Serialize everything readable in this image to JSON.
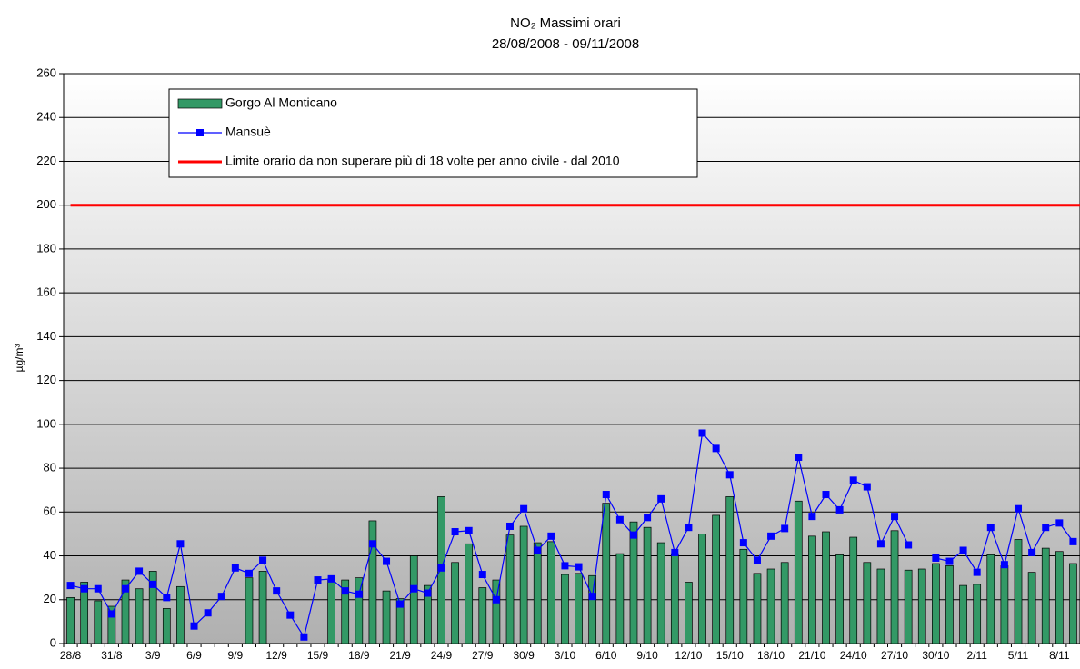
{
  "chart_data": {
    "type": "bar_line",
    "title": "NO₂ Massimi orari",
    "subtitle": "28/08/2008 - 09/11/2008",
    "y_label": "µg/m³",
    "categories": [
      "28/8",
      null,
      null,
      "31/8",
      null,
      null,
      "3/9",
      null,
      null,
      "6/9",
      null,
      null,
      "9/9",
      null,
      null,
      "12/9",
      null,
      null,
      "15/9",
      null,
      null,
      "18/9",
      null,
      null,
      "21/9",
      null,
      null,
      "24/9",
      null,
      null,
      "27/9",
      null,
      null,
      "30/9",
      null,
      null,
      "3/10",
      null,
      null,
      "6/10",
      null,
      null,
      "9/10",
      null,
      null,
      "12/10",
      null,
      null,
      "15/10",
      null,
      null,
      "18/10",
      null,
      null,
      "21/10",
      null,
      null,
      "24/10",
      null,
      null,
      "27/10",
      null,
      null,
      "30/10",
      null,
      null,
      "2/11",
      null,
      null,
      "5/11",
      null,
      null,
      "8/11",
      null
    ],
    "series": [
      {
        "name": "Gorgo Al Monticano",
        "type": "bar",
        "color": "#339966",
        "values": [
          21,
          28,
          19.5,
          17,
          29,
          25,
          33,
          16,
          26,
          null,
          null,
          null,
          null,
          30,
          33,
          null,
          null,
          null,
          null,
          29,
          29,
          30,
          56,
          24,
          20.5,
          40,
          26.5,
          67,
          37,
          45.5,
          25.5,
          29,
          49.5,
          53.5,
          46,
          46.5,
          31.5,
          32,
          31,
          64,
          41,
          55.5,
          53,
          46,
          41,
          28,
          50,
          58.5,
          67,
          43,
          32,
          34,
          37,
          65,
          49,
          51,
          40.5,
          48.5,
          37,
          34,
          51.5,
          33.5,
          34,
          36.5,
          35.5,
          26.5,
          27,
          40.5,
          35.5,
          47.5,
          32.5,
          43.5,
          42,
          36.5
        ]
      },
      {
        "name": "Mansuè",
        "type": "line",
        "color": "#0000ff",
        "values": [
          26.5,
          25,
          25,
          13.5,
          25,
          33,
          27,
          21,
          45.5,
          8,
          14,
          21.5,
          34.5,
          32,
          38,
          24,
          13,
          3,
          29,
          29.5,
          24,
          22.5,
          45.5,
          37.5,
          18,
          25,
          23,
          34.5,
          51,
          51.5,
          31.5,
          20,
          53.5,
          61.5,
          42.5,
          49,
          35.5,
          35,
          21.5,
          68,
          56.5,
          49.5,
          57.5,
          66,
          41.5,
          53,
          96,
          89,
          77,
          46,
          38,
          49,
          52.5,
          85,
          58,
          68,
          61,
          74.5,
          71.5,
          45.5,
          58,
          45,
          null,
          39,
          37.5,
          42.5,
          32.5,
          53,
          36,
          61.5,
          41.5,
          53,
          55,
          46.5
        ]
      }
    ],
    "limit": {
      "name": "Limite orario da non superare più di 18 volte per anno civile - dal 2010",
      "color": "#ff0000",
      "value": 200
    },
    "ylim": [
      0,
      260
    ],
    "yticks": [
      0,
      20,
      40,
      60,
      80,
      100,
      120,
      140,
      160,
      180,
      200,
      220,
      240,
      260
    ],
    "grid": true
  }
}
